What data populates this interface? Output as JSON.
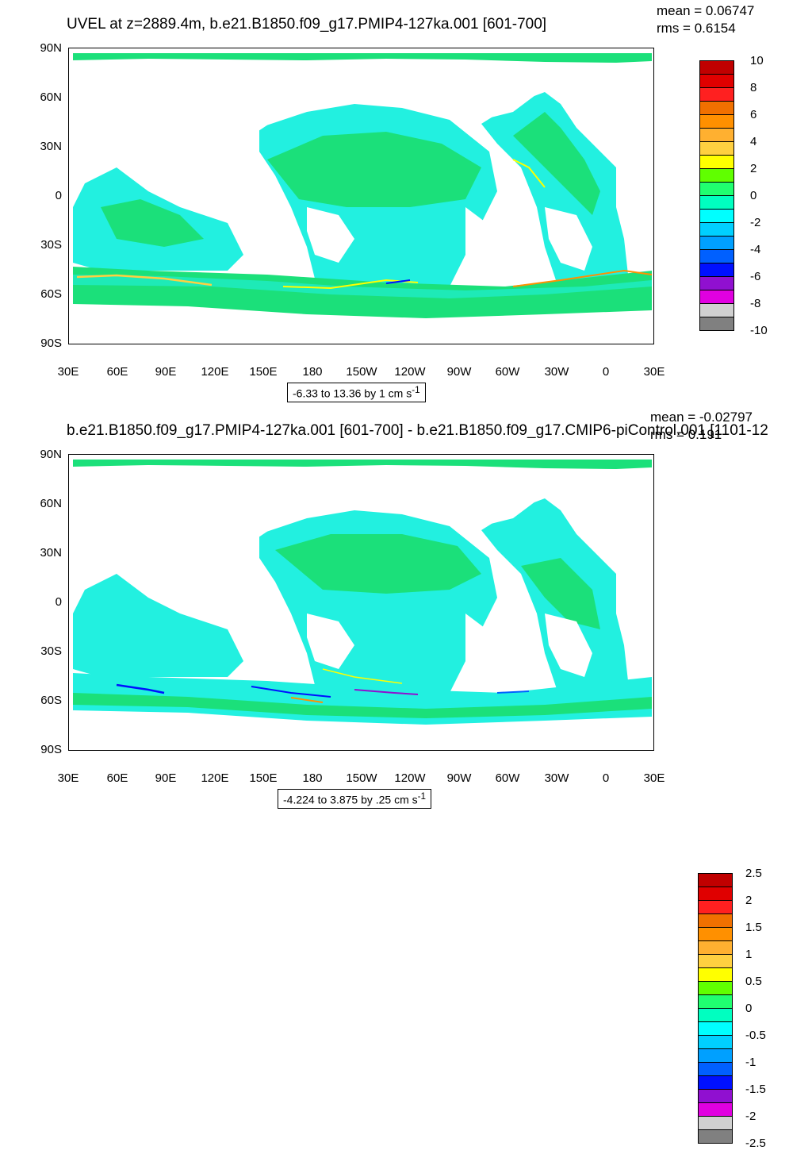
{
  "colors": {
    "ocean_main": "#1be07a",
    "ocean_alt": "#22f0e0",
    "land": "#ffffff"
  },
  "latitude_ticks": [
    "90N",
    "60N",
    "30N",
    "0",
    "30S",
    "60S",
    "90S"
  ],
  "longitude_ticks": [
    "30E",
    "60E",
    "90E",
    "120E",
    "150E",
    "180",
    "150W",
    "120W",
    "90W",
    "60W",
    "30W",
    "0",
    "30E"
  ],
  "panels": [
    {
      "title": "UVEL at z=2889.4m, b.e21.B1850.f09_g17.PMIP4-127ka.001 [601-700]",
      "mean": "mean = 0.06747",
      "rms": "rms = 0.6154",
      "range_text": "-6.33 to 13.36 by 1 cm s",
      "range_sup": "-1",
      "colorbar": {
        "colors": [
          "#c00000",
          "#e00000",
          "#ff2020",
          "#f07000",
          "#ff9000",
          "#ffb030",
          "#ffd040",
          "#ffff00",
          "#60ff00",
          "#20ff70",
          "#00ffc0",
          "#00ffff",
          "#00d0ff",
          "#00a0ff",
          "#0060ff",
          "#0010ff",
          "#9010d0",
          "#e000e0",
          "#d0d0d0",
          "#808080"
        ],
        "labels": [
          "10",
          "8",
          "6",
          "4",
          "2",
          "0",
          "-2",
          "-4",
          "-6",
          "-8",
          "-10"
        ]
      }
    },
    {
      "title": "b.e21.B1850.f09_g17.PMIP4-127ka.001 [601-700] - b.e21.B1850.f09_g17.CMIP6-piControl.001 [1101-12",
      "mean": "mean = -0.02797",
      "rms": "rms = 0.191",
      "range_text": "-4.224 to 3.875 by .25 cm s",
      "range_sup": "-1",
      "colorbar": {
        "colors": [
          "#c00000",
          "#e00000",
          "#ff2020",
          "#f07000",
          "#ff9000",
          "#ffb030",
          "#ffd040",
          "#ffff00",
          "#60ff00",
          "#20ff70",
          "#00ffc0",
          "#00ffff",
          "#00d0ff",
          "#00a0ff",
          "#0060ff",
          "#0010ff",
          "#9010d0",
          "#e000e0",
          "#d0d0d0",
          "#808080"
        ],
        "labels": [
          "2.5",
          "2",
          "1.5",
          "1",
          "0.5",
          "0",
          "-0.5",
          "-1",
          "-1.5",
          "-2",
          "-2.5"
        ]
      }
    }
  ]
}
